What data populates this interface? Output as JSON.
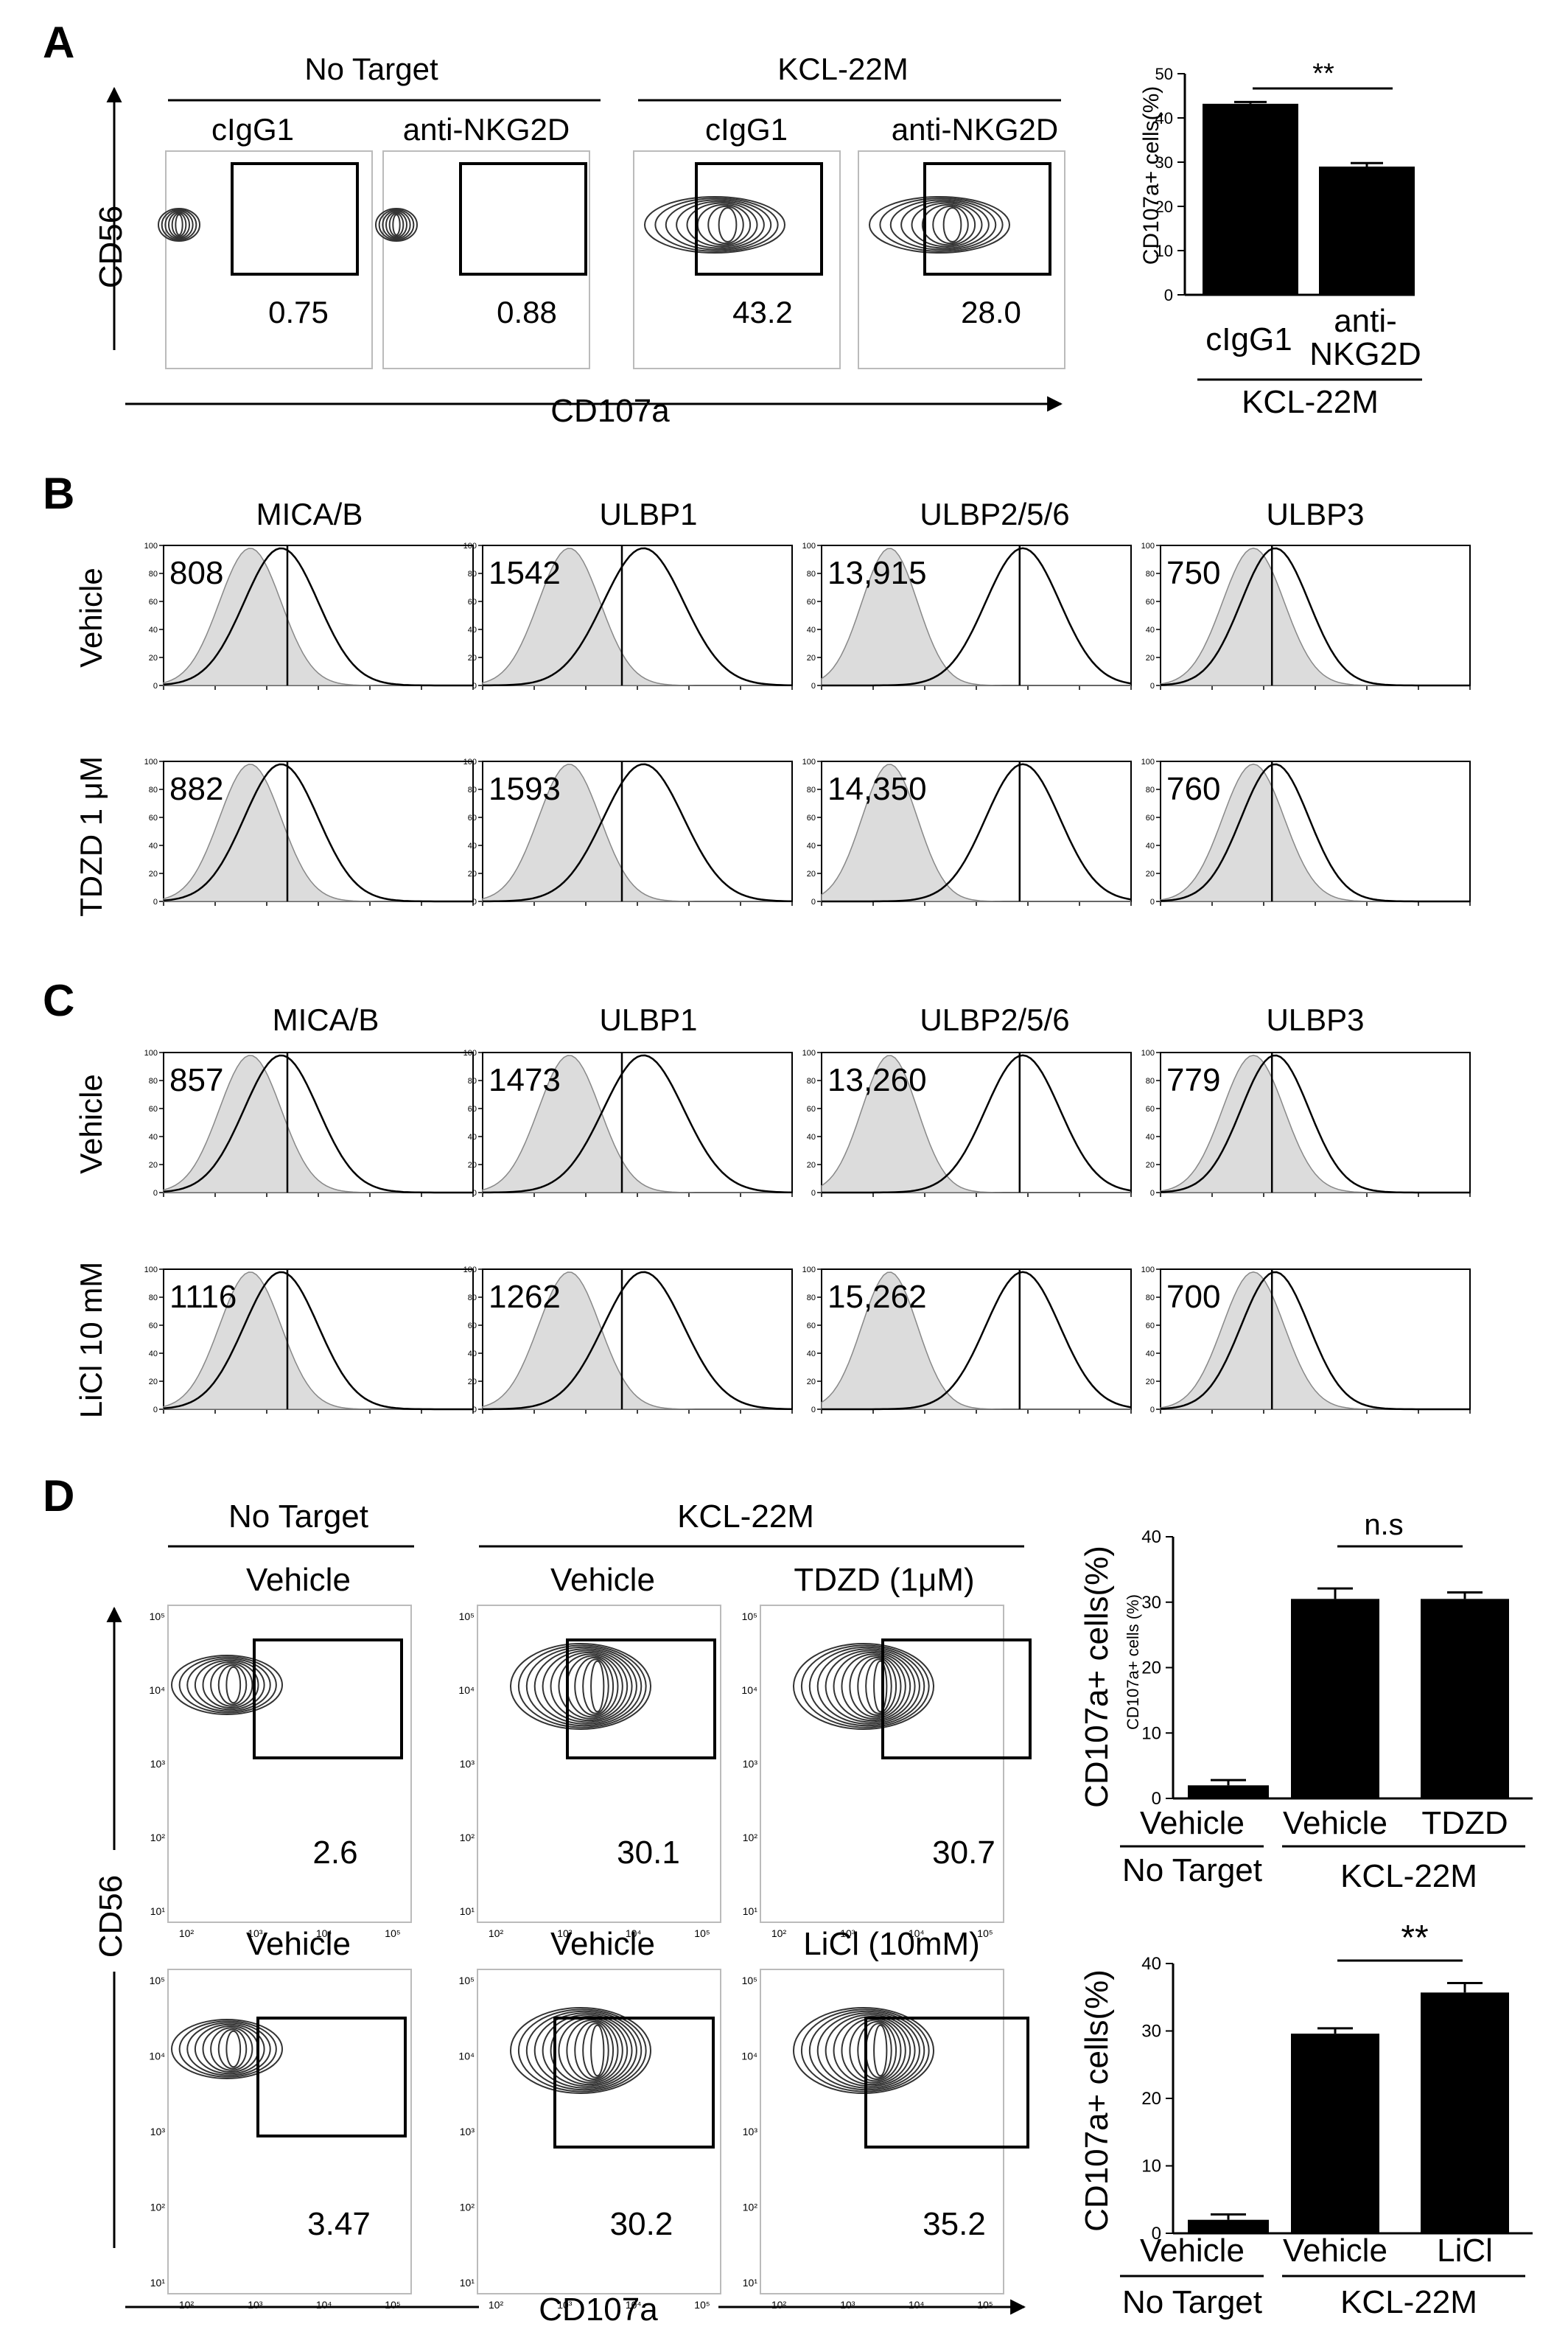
{
  "panel_letters": {
    "a": "A",
    "b": "B",
    "c": "C",
    "d": "D"
  },
  "panelA": {
    "group_no_target": "No Target",
    "group_kcl": "KCL-22M",
    "col_labels": [
      "cIgG1",
      "anti-NKG2D",
      "cIgG1",
      "anti-NKG2D"
    ],
    "values": [
      "0.75",
      "0.88",
      "43.2",
      "28.0"
    ],
    "y_axis": "CD56",
    "x_axis": "CD107a"
  },
  "panelA_bar": {
    "ylabel": "CD107a+ cells(%)",
    "yticks": [
      "0",
      "10",
      "20",
      "30",
      "40",
      "50"
    ],
    "cat1": "cIgG1",
    "cat2_line1": "anti-",
    "cat2_line2": "NKG2D",
    "group": "KCL-22M",
    "sig": "**"
  },
  "panelB": {
    "markers": [
      "MICA/B",
      "ULBP1",
      "ULBP2/5/6",
      "ULBP3"
    ],
    "rows": [
      {
        "label": "Vehicle",
        "values": [
          "808",
          "1542",
          "13,915",
          "750"
        ]
      },
      {
        "label": "TDZD 1 μM",
        "values": [
          "882",
          "1593",
          "14,350",
          "760"
        ]
      }
    ]
  },
  "panelC": {
    "markers": [
      "MICA/B",
      "ULBP1",
      "ULBP2/5/6",
      "ULBP3"
    ],
    "rows": [
      {
        "label": "Vehicle",
        "values": [
          "857",
          "1473",
          "13,260",
          "779"
        ]
      },
      {
        "label": "LiCl 10 mM",
        "values": [
          "1116",
          "1262",
          "15,262",
          "700"
        ]
      }
    ]
  },
  "hist_ticks": [
    "100",
    "80",
    "60",
    "40",
    "20",
    "0"
  ],
  "panelD": {
    "group_no_target": "No Target",
    "group_kcl": "KCL-22M",
    "row1_labels": [
      "Vehicle",
      "Vehicle",
      "TDZD (1μM)"
    ],
    "row1_values": [
      "2.6",
      "30.1",
      "30.7"
    ],
    "row2_labels": [
      "Vehicle",
      "Vehicle",
      "LiCl (10mM)"
    ],
    "row2_values": [
      "3.47",
      "30.2",
      "35.2"
    ],
    "y_axis": "CD56",
    "x_axis": "CD107a",
    "y_ticks": [
      "10⁵",
      "10⁴",
      "10³",
      "10²",
      "10¹"
    ],
    "x_ticks": [
      "10²",
      "10³",
      "10⁴",
      "10⁵"
    ]
  },
  "panelD_bar1": {
    "ylabel": "CD107a+ cells(%)",
    "inner_label": "CD107a+ cells (%)",
    "yticks": [
      "0",
      "10",
      "20",
      "30",
      "40"
    ],
    "cats": [
      "Vehicle",
      "Vehicle",
      "TDZD"
    ],
    "group1": "No Target",
    "group2": "KCL-22M",
    "sig": "n.s"
  },
  "panelD_bar2": {
    "ylabel": "CD107a+ cells(%)",
    "yticks": [
      "0",
      "10",
      "20",
      "30",
      "40"
    ],
    "cats": [
      "Vehicle",
      "Vehicle",
      "LiCl"
    ],
    "group1": "No Target",
    "group2": "KCL-22M",
    "sig": "**"
  },
  "chart_data": [
    {
      "type": "bar",
      "title": "",
      "categories": [
        "cIgG1",
        "anti-NKG2D"
      ],
      "values": [
        43.2,
        29.0
      ],
      "errors": [
        0.4,
        0.8
      ],
      "ylabel": "CD107a+ cells(%)",
      "ylim": [
        0,
        50
      ]
    },
    {
      "type": "bar",
      "title": "",
      "categories": [
        "Vehicle (No Target)",
        "Vehicle (KCL-22M)",
        "TDZD (KCL-22M)"
      ],
      "values": [
        2.0,
        30.5,
        30.5
      ],
      "errors": [
        0.8,
        1.6,
        1.0
      ],
      "ylabel": "CD107a+ cells(%)",
      "ylim": [
        0,
        40
      ]
    },
    {
      "type": "bar",
      "title": "",
      "categories": [
        "Vehicle (No Target)",
        "Vehicle (KCL-22M)",
        "LiCl (KCL-22M)"
      ],
      "values": [
        2.0,
        29.6,
        35.7
      ],
      "errors": [
        0.8,
        0.8,
        1.4
      ],
      "ylabel": "CD107a+ cells(%)",
      "ylim": [
        0,
        40
      ]
    }
  ]
}
